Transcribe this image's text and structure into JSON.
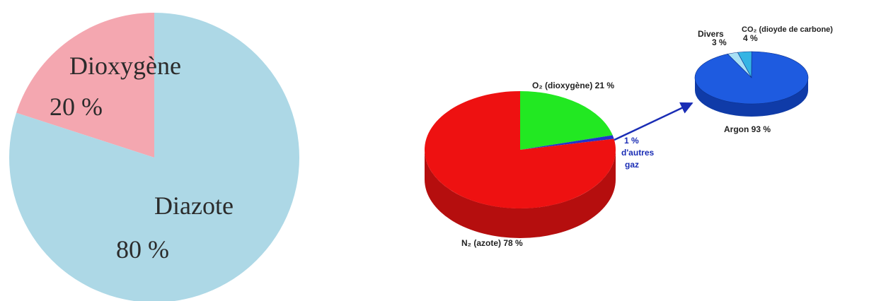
{
  "chart_data": [
    {
      "type": "pie",
      "title": "",
      "slices": [
        {
          "label": "Diazote",
          "value_text": "80 %",
          "value": 80,
          "color": "#ADD8E6"
        },
        {
          "label": "Dioxygène",
          "value_text": "20 %",
          "value": 20,
          "color": "#F4A7B0"
        }
      ]
    },
    {
      "type": "pie",
      "title": "",
      "style": "3d",
      "slices": [
        {
          "label": "N₂ (azote) 78 %",
          "value": 78,
          "color": "#EE1111",
          "side_color": "#B50E0E"
        },
        {
          "label": "O₂ (dioxygène) 21 %",
          "value": 21,
          "color": "#22E822",
          "side_color": "#12A312"
        },
        {
          "label": "1 %",
          "value": 1,
          "color": "#2233CC"
        }
      ],
      "callout": {
        "lines": [
          "1 %",
          "d'autres",
          "gaz"
        ],
        "color": "#1A2DB5"
      }
    },
    {
      "type": "pie",
      "title": "",
      "style": "3d",
      "slices": [
        {
          "label": "Argon 93 %",
          "value": 93,
          "color": "#1E5BE0",
          "side_color": "#0F3BA8"
        },
        {
          "label": "Divers",
          "value_text": "3 %",
          "value": 3,
          "color": "#A8E0F5"
        },
        {
          "label": "CO₂ (dioyde de carbone)",
          "value_text": "4 %",
          "value": 4,
          "color": "#34B4E4"
        }
      ]
    }
  ]
}
